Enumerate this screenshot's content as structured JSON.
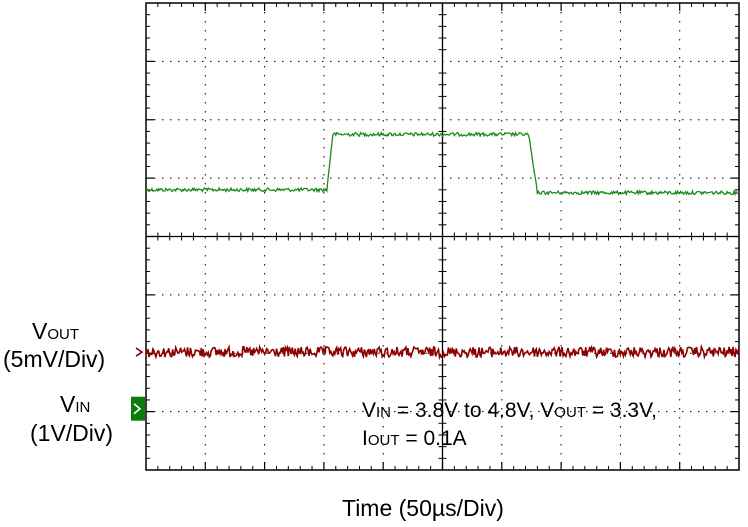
{
  "chart_data": {
    "type": "line",
    "title": "",
    "xlabel": "Time (50µs/Div)",
    "grid": true,
    "divisions": {
      "x": 10,
      "y": 8
    },
    "series": [
      {
        "name_main": "V",
        "name_sub": "IN",
        "scale": "(1V/Div)",
        "color": "#1a8a1a",
        "marker_color": "#0d7a0d",
        "x_div": [
          0,
          3.05,
          3.15,
          6.45,
          6.6,
          10
        ],
        "y_div_from_top": [
          3.2,
          3.2,
          2.25,
          2.25,
          3.25,
          3.25
        ],
        "noise": 0.03
      },
      {
        "name_main": "V",
        "name_sub": "OUT",
        "scale": "(5mV/Div)",
        "color": "#8b0000",
        "marker_color": "#8b0000",
        "x_div": [
          0,
          10
        ],
        "y_div_from_top": [
          5.98,
          5.98
        ],
        "noise": 0.09
      }
    ],
    "annotation": {
      "line1": [
        {
          "t": "V",
          "sub": "IN"
        },
        {
          "t": " = 3.8V to 4.8V, V",
          "sub": "OUT"
        },
        {
          "t": " = 3.3V,",
          "sub": ""
        }
      ],
      "line2": [
        {
          "t": "I",
          "sub": "OUT"
        },
        {
          "t": " = 0.1A",
          "sub": ""
        }
      ]
    }
  }
}
